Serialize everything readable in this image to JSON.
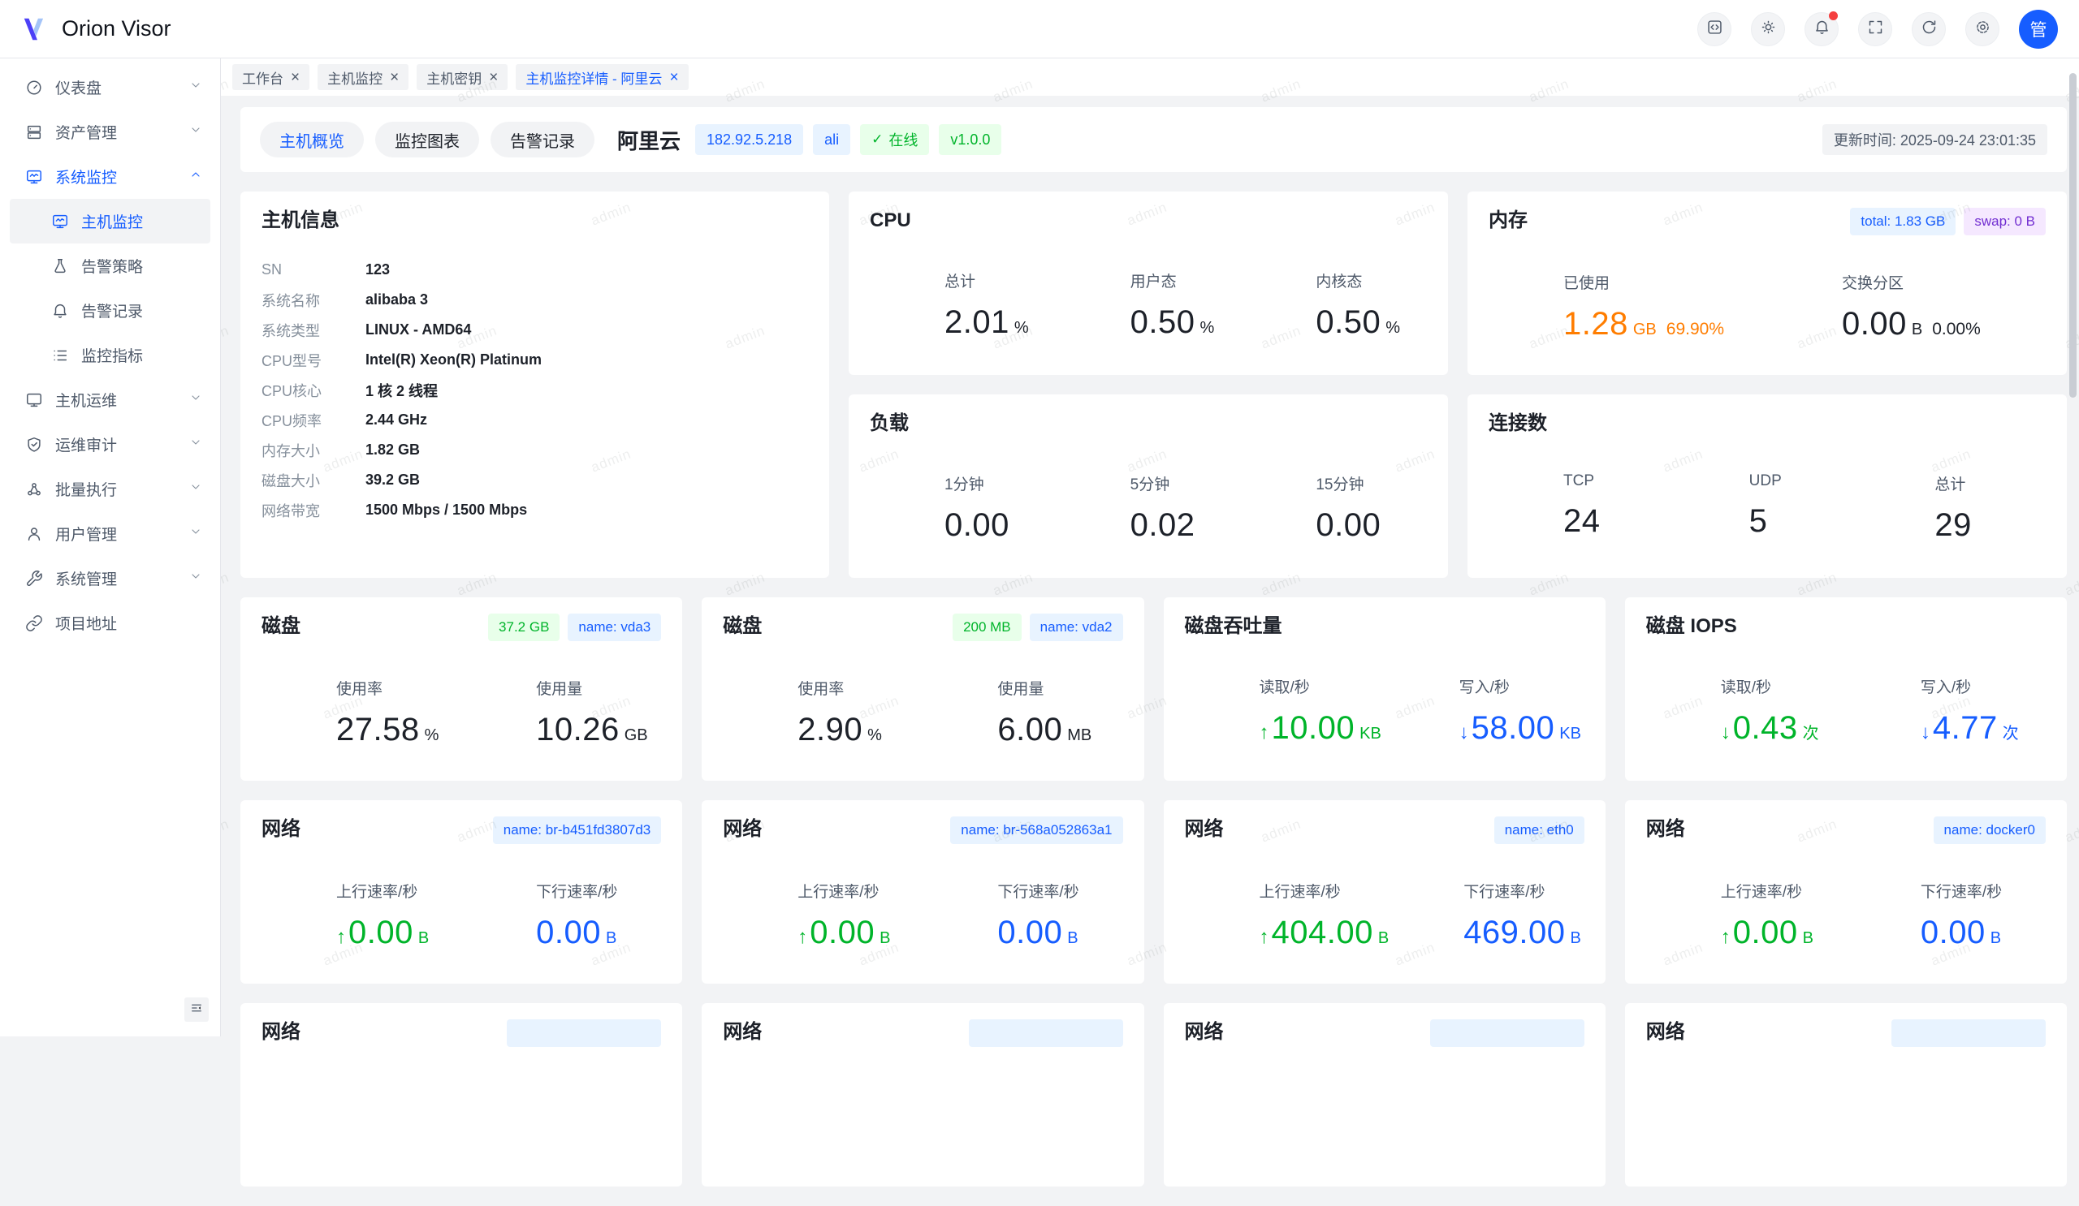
{
  "navbar": {
    "logo_text": "Orion Visor",
    "avatar_text": "管",
    "icons": [
      "code-icon",
      "theme-icon",
      "notifications-icon",
      "fullscreen-icon",
      "refresh-icon",
      "settings-icon"
    ]
  },
  "tabs": [
    {
      "label": "工作台"
    },
    {
      "label": "主机监控"
    },
    {
      "label": "主机密钥"
    },
    {
      "label": "主机监控详情 - 阿里云"
    }
  ],
  "tab_close": "×",
  "sidebar": {
    "items": [
      {
        "label": "仪表盘"
      },
      {
        "label": "资产管理"
      },
      {
        "label": "系统监控"
      },
      {
        "label": "主机监控"
      },
      {
        "label": "告警策略"
      },
      {
        "label": "告警记录"
      },
      {
        "label": "监控指标"
      },
      {
        "label": "主机运维"
      },
      {
        "label": "运维审计"
      },
      {
        "label": "批量执行"
      },
      {
        "label": "用户管理"
      },
      {
        "label": "系统管理"
      },
      {
        "label": "项目地址"
      }
    ]
  },
  "header": {
    "view_tabs": [
      {
        "label": "主机概览"
      },
      {
        "label": "监控图表"
      },
      {
        "label": "告警记录"
      }
    ],
    "host_name": "阿里云",
    "ip": "182.92.5.218",
    "tag": "ali",
    "status_check": "✓",
    "status": "在线",
    "version": "v1.0.0",
    "update_time": "更新时间: 2025-09-24 23:01:35"
  },
  "cards": {
    "host_info": {
      "title": "主机信息",
      "rows": [
        {
          "label": "SN",
          "value": "123"
        },
        {
          "label": "系统名称",
          "value": "alibaba 3"
        },
        {
          "label": "系统类型",
          "value": "LINUX - AMD64"
        },
        {
          "label": "CPU型号",
          "value": "Intel(R) Xeon(R) Platinum"
        },
        {
          "label": "CPU核心",
          "value": "1 核 2 线程"
        },
        {
          "label": "CPU频率",
          "value": "2.44 GHz"
        },
        {
          "label": "内存大小",
          "value": "1.82 GB"
        },
        {
          "label": "磁盘大小",
          "value": "39.2 GB"
        },
        {
          "label": "网络带宽",
          "value": "1500 Mbps / 1500 Mbps"
        }
      ]
    },
    "cpu": {
      "title": "CPU",
      "stats": [
        {
          "label": "总计",
          "value": "2.01",
          "unit": "%"
        },
        {
          "label": "用户态",
          "value": "0.50",
          "unit": "%"
        },
        {
          "label": "内核态",
          "value": "0.50",
          "unit": "%"
        }
      ]
    },
    "memory": {
      "title": "内存",
      "badges": [
        {
          "text": "total: 1.83 GB"
        },
        {
          "text": "swap: 0 B"
        }
      ],
      "stats": [
        {
          "label": "已使用",
          "value": "1.28",
          "unit": "GB",
          "extra": "69.90%"
        },
        {
          "label": "交换分区",
          "value": "0.00",
          "unit": "B",
          "extra": "0.00%"
        }
      ]
    },
    "load": {
      "title": "负载",
      "stats": [
        {
          "label": "1分钟",
          "value": "0.00"
        },
        {
          "label": "5分钟",
          "value": "0.02"
        },
        {
          "label": "15分钟",
          "value": "0.00"
        }
      ]
    },
    "connections": {
      "title": "连接数",
      "stats": [
        {
          "label": "TCP",
          "value": "24"
        },
        {
          "label": "UDP",
          "value": "5"
        },
        {
          "label": "总计",
          "value": "29"
        }
      ]
    },
    "disk1": {
      "title": "磁盘",
      "badges": [
        {
          "text": "37.2 GB"
        },
        {
          "text": "name: vda3"
        }
      ],
      "stats": [
        {
          "label": "使用率",
          "value": "27.58",
          "unit": "%"
        },
        {
          "label": "使用量",
          "value": "10.26",
          "unit": "GB"
        }
      ]
    },
    "disk2": {
      "title": "磁盘",
      "badges": [
        {
          "text": "200 MB"
        },
        {
          "text": "name: vda2"
        }
      ],
      "stats": [
        {
          "label": "使用率",
          "value": "2.90",
          "unit": "%"
        },
        {
          "label": "使用量",
          "value": "6.00",
          "unit": "MB"
        }
      ]
    },
    "disk_throughput": {
      "title": "磁盘吞吐量",
      "stats": [
        {
          "label": "读取/秒",
          "arrow": "↑",
          "value": "10.00",
          "unit": "KB"
        },
        {
          "label": "写入/秒",
          "arrow": "↓",
          "value": "58.00",
          "unit": "KB"
        }
      ]
    },
    "disk_iops": {
      "title": "磁盘 IOPS",
      "stats": [
        {
          "label": "读取/秒",
          "arrow": "↓",
          "value": "0.43",
          "unit": "次"
        },
        {
          "label": "写入/秒",
          "arrow": "↓",
          "value": "4.77",
          "unit": "次"
        }
      ]
    },
    "net1": {
      "title": "网络",
      "badges": [
        {
          "text": "name: br-b451fd3807d3"
        }
      ],
      "stats": [
        {
          "label": "上行速率/秒",
          "arrow": "↑",
          "value": "0.00",
          "unit": "B"
        },
        {
          "label": "下行速率/秒",
          "value": "0.00",
          "unit": "B"
        }
      ]
    },
    "net2": {
      "title": "网络",
      "badges": [
        {
          "text": "name: br-568a052863a1"
        }
      ],
      "stats": [
        {
          "label": "上行速率/秒",
          "arrow": "↑",
          "value": "0.00",
          "unit": "B"
        },
        {
          "label": "下行速率/秒",
          "value": "0.00",
          "unit": "B"
        }
      ]
    },
    "net3": {
      "title": "网络",
      "badges": [
        {
          "text": "name: eth0"
        }
      ],
      "stats": [
        {
          "label": "上行速率/秒",
          "arrow": "↑",
          "value": "404.00",
          "unit": "B"
        },
        {
          "label": "下行速率/秒",
          "value": "469.00",
          "unit": "B"
        }
      ]
    },
    "net4": {
      "title": "网络",
      "badges": [
        {
          "text": "name: docker0"
        }
      ],
      "stats": [
        {
          "label": "上行速率/秒",
          "arrow": "↑",
          "value": "0.00",
          "unit": "B"
        },
        {
          "label": "下行速率/秒",
          "value": "0.00",
          "unit": "B"
        }
      ]
    },
    "partial_row": {
      "titles": [
        "网络",
        "网络",
        "网络",
        "网络"
      ]
    }
  },
  "watermark": {
    "text": "admin"
  },
  "colors": {
    "accent_blue": "#165dff",
    "green": "#00b42a",
    "orange": "#ff7d00",
    "purple": "#722ed1",
    "red_dot": "#f53f3f",
    "page_bg": "#f2f3f5"
  }
}
